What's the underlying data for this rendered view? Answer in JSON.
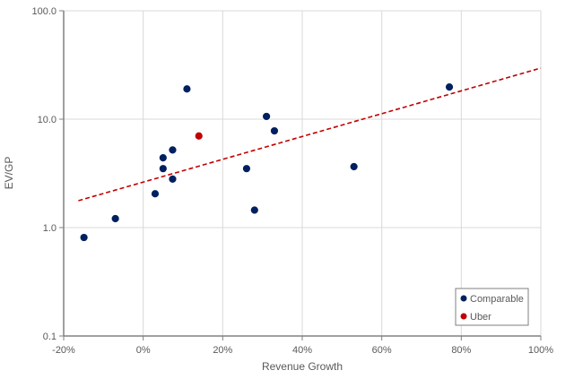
{
  "chart_data": {
    "type": "scatter",
    "title": "",
    "xlabel": "Revenue Growth",
    "ylabel": "EV/GP",
    "xlim": [
      -20,
      100
    ],
    "ylim": [
      0.1,
      100
    ],
    "yscale": "log",
    "grid": true,
    "legend_position": "bottom-right",
    "x_ticks": [
      "-20%",
      "0%",
      "20%",
      "40%",
      "60%",
      "80%",
      "100%"
    ],
    "x_tick_values": [
      -20,
      0,
      20,
      40,
      60,
      80,
      100
    ],
    "y_ticks": [
      "0.1",
      "1.0",
      "10.0",
      "100.0"
    ],
    "y_tick_values": [
      0.1,
      1,
      10,
      100
    ],
    "series": [
      {
        "name": "Comparable",
        "color": "#002060",
        "points": [
          [
            -14.9,
            0.81
          ],
          [
            -7.0,
            1.21
          ],
          [
            3.0,
            2.05
          ],
          [
            5.0,
            4.4
          ],
          [
            5.0,
            3.5
          ],
          [
            7.4,
            2.8
          ],
          [
            7.4,
            5.2
          ],
          [
            11.0,
            19.0
          ],
          [
            26.0,
            3.5
          ],
          [
            28.0,
            1.45
          ],
          [
            31.0,
            10.6
          ],
          [
            33.0,
            7.8
          ],
          [
            53.0,
            3.65
          ],
          [
            77.0,
            19.8
          ]
        ]
      },
      {
        "name": "Uber",
        "color": "#C00000",
        "points": [
          [
            14.0,
            7.0
          ]
        ]
      }
    ],
    "trendline": {
      "style": "dashed",
      "color": "#C00000",
      "points": [
        [
          -16.3,
          1.77
        ],
        [
          100,
          29.6
        ]
      ]
    }
  }
}
